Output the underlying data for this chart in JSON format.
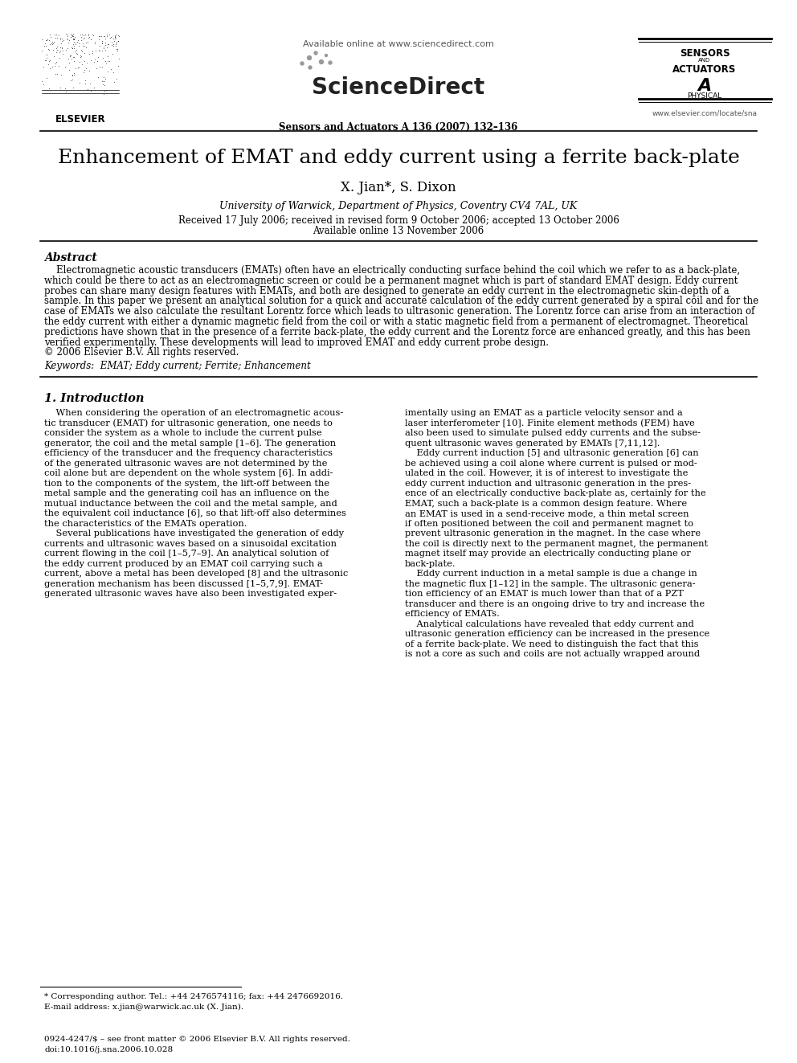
{
  "bg_color": "#ffffff",
  "title": "Enhancement of EMAT and eddy current using a ferrite back-plate",
  "authors": "X. Jian*, S. Dixon",
  "affiliation": "University of Warwick, Department of Physics, Coventry CV4 7AL, UK",
  "date_line1": "Received 17 July 2006; received in revised form 9 October 2006; accepted 13 October 2006",
  "date_line2": "Available online 13 November 2006",
  "journal_info": "Sensors and Actuators A 136 (2007) 132–136",
  "available_online": "Available online at www.sciencedirect.com",
  "elsevier_url": "www.elsevier.com/locate/sna",
  "abstract_title": "Abstract",
  "keywords_line": "Keywords:  EMAT; Eddy current; Ferrite; Enhancement",
  "section1_title": "1. Introduction",
  "footnote1": "* Corresponding author. Tel.: +44 2476574116; fax: +44 2476692016.",
  "footnote2": "E-mail address: x.jian@warwick.ac.uk (X. Jian).",
  "footnote3": "0924-4247/$ – see front matter © 2006 Elsevier B.V. All rights reserved.",
  "footnote4": "doi:10.1016/j.sna.2006.10.028",
  "abstract_lines": [
    "    Electromagnetic acoustic transducers (EMATs) often have an electrically conducting surface behind the coil which we refer to as a back-plate,",
    "which could be there to act as an electromagnetic screen or could be a permanent magnet which is part of standard EMAT design. Eddy current",
    "probes can share many design features with EMATs, and both are designed to generate an eddy current in the electromagnetic skin-depth of a",
    "sample. In this paper we present an analytical solution for a quick and accurate calculation of the eddy current generated by a spiral coil and for the",
    "case of EMATs we also calculate the resultant Lorentz force which leads to ultrasonic generation. The Lorentz force can arise from an interaction of",
    "the eddy current with either a dynamic magnetic field from the coil or with a static magnetic field from a permanent of electromagnet. Theoretical",
    "predictions have shown that in the presence of a ferrite back-plate, the eddy current and the Lorentz force are enhanced greatly, and this has been",
    "verified experimentally. These developments will lead to improved EMAT and eddy current probe design.",
    "© 2006 Elsevier B.V. All rights reserved."
  ],
  "col1_lines": [
    "    When considering the operation of an electromagnetic acous-",
    "tic transducer (EMAT) for ultrasonic generation, one needs to",
    "consider the system as a whole to include the current pulse",
    "generator, the coil and the metal sample [1–6]. The generation",
    "efficiency of the transducer and the frequency characteristics",
    "of the generated ultrasonic waves are not determined by the",
    "coil alone but are dependent on the whole system [6]. In addi-",
    "tion to the components of the system, the lift-off between the",
    "metal sample and the generating coil has an influence on the",
    "mutual inductance between the coil and the metal sample, and",
    "the equivalent coil inductance [6], so that lift-off also determines",
    "the characteristics of the EMATs operation.",
    "    Several publications have investigated the generation of eddy",
    "currents and ultrasonic waves based on a sinusoidal excitation",
    "current flowing in the coil [1–5,7–9]. An analytical solution of",
    "the eddy current produced by an EMAT coil carrying such a",
    "current, above a metal has been developed [8] and the ultrasonic",
    "generation mechanism has been discussed [1–5,7,9]. EMAT-",
    "generated ultrasonic waves have also been investigated exper-"
  ],
  "col2_lines": [
    "imentally using an EMAT as a particle velocity sensor and a",
    "laser interferometer [10]. Finite element methods (FEM) have",
    "also been used to simulate pulsed eddy currents and the subse-",
    "quent ultrasonic waves generated by EMATs [7,11,12].",
    "    Eddy current induction [5] and ultrasonic generation [6] can",
    "be achieved using a coil alone where current is pulsed or mod-",
    "ulated in the coil. However, it is of interest to investigate the",
    "eddy current induction and ultrasonic generation in the pres-",
    "ence of an electrically conductive back-plate as, certainly for the",
    "EMAT, such a back-plate is a common design feature. Where",
    "an EMAT is used in a send-receive mode, a thin metal screen",
    "if often positioned between the coil and permanent magnet to",
    "prevent ultrasonic generation in the magnet. In the case where",
    "the coil is directly next to the permanent magnet, the permanent",
    "magnet itself may provide an electrically conducting plane or",
    "back-plate.",
    "    Eddy current induction in a metal sample is due a change in",
    "the magnetic flux [1–12] in the sample. The ultrasonic genera-",
    "tion efficiency of an EMAT is much lower than that of a PZT",
    "transducer and there is an ongoing drive to try and increase the",
    "efficiency of EMATs.",
    "    Analytical calculations have revealed that eddy current and",
    "ultrasonic generation efficiency can be increased in the presence",
    "of a ferrite back-plate. We need to distinguish the fact that this",
    "is not a core as such and coils are not actually wrapped around"
  ]
}
